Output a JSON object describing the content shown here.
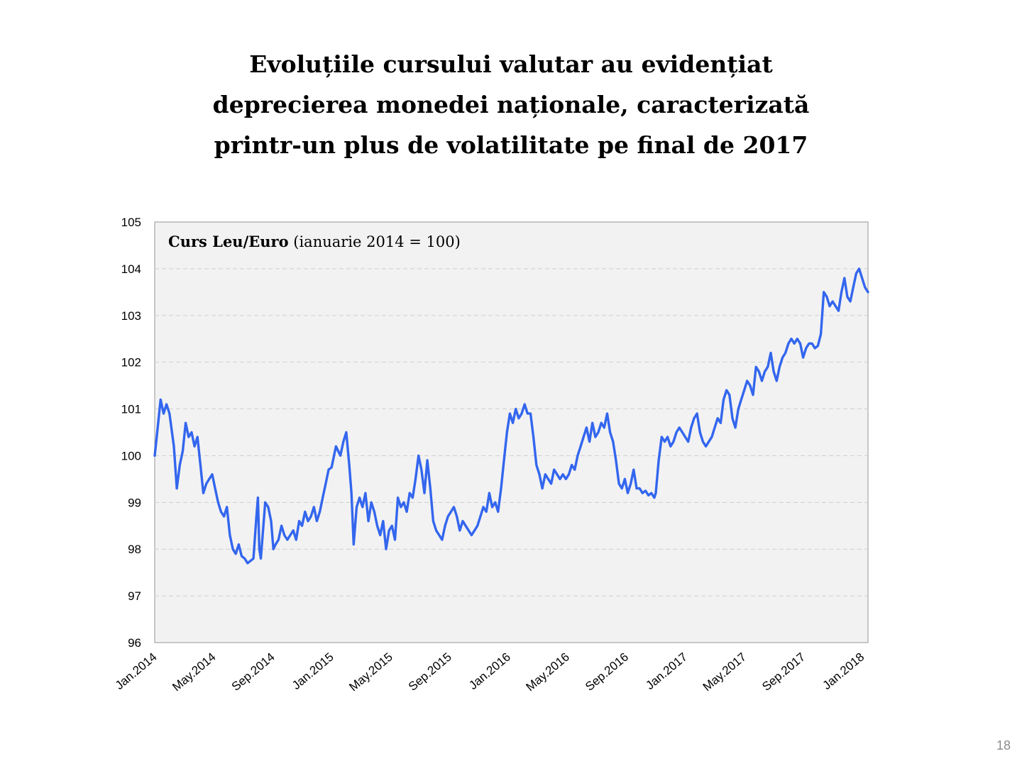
{
  "slide": {
    "title_lines": [
      "Evoluțiile cursului valutar au evidențiat",
      "deprecierea monedei naționale, caracterizată",
      "printr-un plus de volatilitate pe final de 2017"
    ],
    "page_number": "18"
  },
  "chart_data": {
    "type": "line",
    "title_bold": "Curs Leu/Euro",
    "title_rest": " (ianuarie 2014 = 100)",
    "xlabel": "",
    "ylabel": "",
    "ylim": [
      96,
      105
    ],
    "yticks": [
      96,
      97,
      98,
      99,
      100,
      101,
      102,
      103,
      104,
      105
    ],
    "x_tick_labels": [
      "Jan.2014",
      "May.2014",
      "Sep.2014",
      "Jan.2015",
      "May.2015",
      "Sep.2015",
      "Jan.2016",
      "May.2016",
      "Sep.2016",
      "Jan.2017",
      "May.2017",
      "Sep.2017",
      "Jan.2018"
    ],
    "x_start": "2014-01",
    "x_end": "2018-02",
    "grid": true,
    "legend": "none",
    "line_color": "#3366ee",
    "plot_background": "#f2f2f2",
    "series": [
      {
        "values": [
          [
            0.0,
            100.0
          ],
          [
            0.2,
            100.6
          ],
          [
            0.4,
            101.2
          ],
          [
            0.6,
            100.9
          ],
          [
            0.8,
            101.1
          ],
          [
            1.0,
            100.9
          ],
          [
            1.3,
            100.2
          ],
          [
            1.5,
            99.3
          ],
          [
            1.7,
            99.8
          ],
          [
            1.9,
            100.1
          ],
          [
            2.1,
            100.7
          ],
          [
            2.3,
            100.4
          ],
          [
            2.5,
            100.5
          ],
          [
            2.7,
            100.2
          ],
          [
            2.9,
            100.4
          ],
          [
            3.1,
            99.8
          ],
          [
            3.3,
            99.2
          ],
          [
            3.5,
            99.4
          ],
          [
            3.7,
            99.5
          ],
          [
            3.9,
            99.6
          ],
          [
            4.1,
            99.3
          ],
          [
            4.3,
            99.0
          ],
          [
            4.5,
            98.8
          ],
          [
            4.7,
            98.7
          ],
          [
            4.9,
            98.9
          ],
          [
            5.1,
            98.3
          ],
          [
            5.3,
            98.0
          ],
          [
            5.5,
            97.9
          ],
          [
            5.7,
            98.1
          ],
          [
            5.9,
            97.85
          ],
          [
            6.1,
            97.8
          ],
          [
            6.3,
            97.7
          ],
          [
            6.5,
            97.75
          ],
          [
            6.7,
            97.8
          ],
          [
            6.9,
            98.7
          ],
          [
            7.0,
            99.1
          ],
          [
            7.1,
            98.0
          ],
          [
            7.2,
            97.8
          ],
          [
            7.35,
            98.4
          ],
          [
            7.5,
            99.0
          ],
          [
            7.7,
            98.9
          ],
          [
            7.9,
            98.6
          ],
          [
            8.05,
            98.0
          ],
          [
            8.2,
            98.1
          ],
          [
            8.4,
            98.2
          ],
          [
            8.6,
            98.5
          ],
          [
            8.8,
            98.3
          ],
          [
            9.0,
            98.2
          ],
          [
            9.2,
            98.3
          ],
          [
            9.4,
            98.4
          ],
          [
            9.6,
            98.2
          ],
          [
            9.8,
            98.6
          ],
          [
            10.0,
            98.5
          ],
          [
            10.2,
            98.8
          ],
          [
            10.4,
            98.6
          ],
          [
            10.6,
            98.7
          ],
          [
            10.8,
            98.9
          ],
          [
            11.0,
            98.6
          ],
          [
            11.2,
            98.8
          ],
          [
            11.4,
            99.1
          ],
          [
            11.6,
            99.4
          ],
          [
            11.8,
            99.7
          ],
          [
            12.0,
            99.75
          ],
          [
            12.3,
            100.2
          ],
          [
            12.6,
            100.0
          ],
          [
            12.8,
            100.3
          ],
          [
            13.0,
            100.5
          ],
          [
            13.2,
            99.8
          ],
          [
            13.35,
            99.2
          ],
          [
            13.5,
            98.1
          ],
          [
            13.7,
            98.9
          ],
          [
            13.9,
            99.1
          ],
          [
            14.1,
            98.9
          ],
          [
            14.3,
            99.2
          ],
          [
            14.5,
            98.6
          ],
          [
            14.7,
            99.0
          ],
          [
            14.9,
            98.8
          ],
          [
            15.1,
            98.5
          ],
          [
            15.3,
            98.3
          ],
          [
            15.5,
            98.6
          ],
          [
            15.7,
            98.0
          ],
          [
            15.9,
            98.4
          ],
          [
            16.1,
            98.5
          ],
          [
            16.3,
            98.2
          ],
          [
            16.5,
            99.1
          ],
          [
            16.7,
            98.9
          ],
          [
            16.9,
            99.0
          ],
          [
            17.1,
            98.8
          ],
          [
            17.3,
            99.2
          ],
          [
            17.5,
            99.1
          ],
          [
            17.7,
            99.5
          ],
          [
            17.9,
            100.0
          ],
          [
            18.1,
            99.7
          ],
          [
            18.3,
            99.2
          ],
          [
            18.5,
            99.9
          ],
          [
            18.7,
            99.3
          ],
          [
            18.9,
            98.6
          ],
          [
            19.1,
            98.4
          ],
          [
            19.3,
            98.3
          ],
          [
            19.5,
            98.2
          ],
          [
            19.7,
            98.5
          ],
          [
            19.9,
            98.7
          ],
          [
            20.1,
            98.8
          ],
          [
            20.3,
            98.9
          ],
          [
            20.5,
            98.7
          ],
          [
            20.7,
            98.4
          ],
          [
            20.9,
            98.6
          ],
          [
            21.1,
            98.5
          ],
          [
            21.3,
            98.4
          ],
          [
            21.5,
            98.3
          ],
          [
            21.7,
            98.4
          ],
          [
            21.9,
            98.5
          ],
          [
            22.1,
            98.7
          ],
          [
            22.3,
            98.9
          ],
          [
            22.5,
            98.8
          ],
          [
            22.7,
            99.2
          ],
          [
            22.9,
            98.9
          ],
          [
            23.1,
            99.0
          ],
          [
            23.3,
            98.8
          ],
          [
            23.5,
            99.3
          ],
          [
            23.7,
            99.9
          ],
          [
            23.9,
            100.5
          ],
          [
            24.1,
            100.9
          ],
          [
            24.3,
            100.7
          ],
          [
            24.5,
            101.0
          ],
          [
            24.7,
            100.8
          ],
          [
            24.9,
            100.9
          ],
          [
            25.1,
            101.1
          ],
          [
            25.3,
            100.9
          ],
          [
            25.5,
            100.9
          ],
          [
            25.7,
            100.4
          ],
          [
            25.9,
            99.8
          ],
          [
            26.1,
            99.6
          ],
          [
            26.3,
            99.3
          ],
          [
            26.5,
            99.6
          ],
          [
            26.7,
            99.5
          ],
          [
            26.9,
            99.4
          ],
          [
            27.1,
            99.7
          ],
          [
            27.3,
            99.6
          ],
          [
            27.5,
            99.5
          ],
          [
            27.7,
            99.6
          ],
          [
            27.9,
            99.5
          ],
          [
            28.1,
            99.6
          ],
          [
            28.3,
            99.8
          ],
          [
            28.5,
            99.7
          ],
          [
            28.7,
            100.0
          ],
          [
            28.9,
            100.2
          ],
          [
            29.1,
            100.4
          ],
          [
            29.3,
            100.6
          ],
          [
            29.5,
            100.3
          ],
          [
            29.7,
            100.7
          ],
          [
            29.9,
            100.4
          ],
          [
            30.1,
            100.5
          ],
          [
            30.3,
            100.7
          ],
          [
            30.5,
            100.6
          ],
          [
            30.7,
            100.9
          ],
          [
            30.9,
            100.5
          ],
          [
            31.1,
            100.3
          ],
          [
            31.3,
            99.9
          ],
          [
            31.5,
            99.4
          ],
          [
            31.7,
            99.3
          ],
          [
            31.9,
            99.5
          ],
          [
            32.1,
            99.2
          ],
          [
            32.3,
            99.4
          ],
          [
            32.5,
            99.7
          ],
          [
            32.7,
            99.3
          ],
          [
            32.9,
            99.3
          ],
          [
            33.1,
            99.2
          ],
          [
            33.3,
            99.25
          ],
          [
            33.5,
            99.15
          ],
          [
            33.7,
            99.2
          ],
          [
            33.9,
            99.1
          ],
          [
            34.0,
            99.2
          ],
          [
            34.2,
            99.9
          ],
          [
            34.4,
            100.4
          ],
          [
            34.6,
            100.3
          ],
          [
            34.8,
            100.4
          ],
          [
            35.0,
            100.2
          ],
          [
            35.2,
            100.3
          ],
          [
            35.4,
            100.5
          ],
          [
            35.6,
            100.6
          ],
          [
            35.8,
            100.5
          ],
          [
            36.0,
            100.4
          ],
          [
            36.2,
            100.3
          ],
          [
            36.4,
            100.6
          ],
          [
            36.6,
            100.8
          ],
          [
            36.8,
            100.9
          ],
          [
            37.0,
            100.5
          ],
          [
            37.2,
            100.3
          ],
          [
            37.4,
            100.2
          ],
          [
            37.6,
            100.3
          ],
          [
            37.8,
            100.4
          ],
          [
            38.0,
            100.6
          ],
          [
            38.2,
            100.8
          ],
          [
            38.4,
            100.7
          ],
          [
            38.6,
            101.2
          ],
          [
            38.8,
            101.4
          ],
          [
            39.0,
            101.3
          ],
          [
            39.2,
            100.8
          ],
          [
            39.4,
            100.6
          ],
          [
            39.6,
            101.0
          ],
          [
            39.8,
            101.2
          ],
          [
            40.0,
            101.4
          ],
          [
            40.2,
            101.6
          ],
          [
            40.4,
            101.5
          ],
          [
            40.6,
            101.3
          ],
          [
            40.8,
            101.9
          ],
          [
            41.0,
            101.8
          ],
          [
            41.2,
            101.6
          ],
          [
            41.4,
            101.8
          ],
          [
            41.6,
            101.9
          ],
          [
            41.8,
            102.2
          ],
          [
            42.0,
            101.8
          ],
          [
            42.2,
            101.6
          ],
          [
            42.4,
            101.9
          ],
          [
            42.6,
            102.1
          ],
          [
            42.8,
            102.2
          ],
          [
            43.0,
            102.4
          ],
          [
            43.2,
            102.5
          ],
          [
            43.4,
            102.4
          ],
          [
            43.6,
            102.5
          ],
          [
            43.8,
            102.4
          ],
          [
            44.0,
            102.1
          ],
          [
            44.2,
            102.3
          ],
          [
            44.4,
            102.4
          ],
          [
            44.6,
            102.4
          ],
          [
            44.8,
            102.3
          ],
          [
            45.0,
            102.35
          ],
          [
            45.2,
            102.6
          ],
          [
            45.4,
            103.5
          ],
          [
            45.6,
            103.4
          ],
          [
            45.8,
            103.2
          ],
          [
            46.0,
            103.3
          ],
          [
            46.2,
            103.2
          ],
          [
            46.4,
            103.1
          ],
          [
            46.6,
            103.5
          ],
          [
            46.8,
            103.8
          ],
          [
            47.0,
            103.4
          ],
          [
            47.2,
            103.3
          ],
          [
            47.4,
            103.6
          ],
          [
            47.6,
            103.9
          ],
          [
            47.8,
            104.0
          ],
          [
            48.0,
            103.8
          ],
          [
            48.2,
            103.6
          ],
          [
            48.4,
            103.5
          ]
        ]
      }
    ]
  }
}
